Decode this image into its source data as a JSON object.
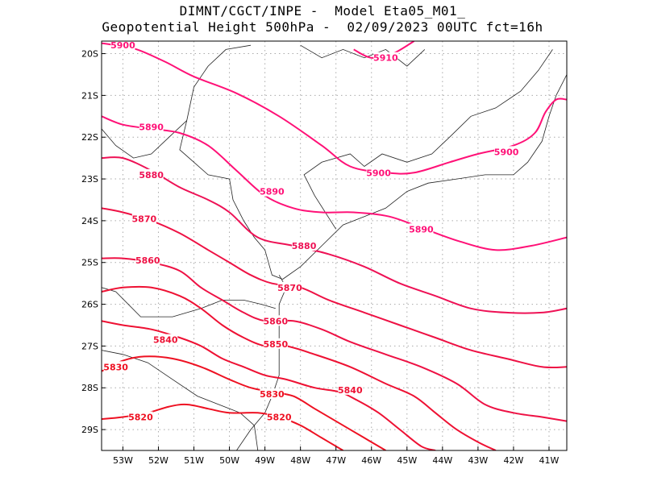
{
  "chart_data": {
    "type": "line",
    "title": "DIMNT/CGCT/INPE -  Model Eta05_M01_",
    "subtitle": "Geopotential Height 500hPa -  02/09/2023 00UTC fct=16h",
    "xlim": [
      -53.6,
      -40.5
    ],
    "ylim": [
      -29.5,
      -19.7
    ],
    "x_ticks": [
      {
        "v": -53,
        "label": "53W"
      },
      {
        "v": -52,
        "label": "52W"
      },
      {
        "v": -51,
        "label": "51W"
      },
      {
        "v": -50,
        "label": "50W"
      },
      {
        "v": -49,
        "label": "49W"
      },
      {
        "v": -48,
        "label": "48W"
      },
      {
        "v": -47,
        "label": "47W"
      },
      {
        "v": -46,
        "label": "46W"
      },
      {
        "v": -45,
        "label": "45W"
      },
      {
        "v": -44,
        "label": "44W"
      },
      {
        "v": -43,
        "label": "43W"
      },
      {
        "v": -42,
        "label": "42W"
      },
      {
        "v": -41,
        "label": "41W"
      }
    ],
    "y_ticks": [
      {
        "v": -20,
        "label": "20S"
      },
      {
        "v": -21,
        "label": "21S"
      },
      {
        "v": -22,
        "label": "22S"
      },
      {
        "v": -23,
        "label": "23S"
      },
      {
        "v": -24,
        "label": "24S"
      },
      {
        "v": -25,
        "label": "25S"
      },
      {
        "v": -26,
        "label": "26S"
      },
      {
        "v": -27,
        "label": "27S"
      },
      {
        "v": -28,
        "label": "28S"
      },
      {
        "v": -29,
        "label": "29S"
      }
    ],
    "grid": true,
    "series": [
      {
        "name": "5910",
        "color": "#ff1177",
        "points": [
          [
            -46.5,
            -19.9
          ],
          [
            -46.0,
            -20.1
          ],
          [
            -45.4,
            -20.0
          ],
          [
            -44.8,
            -19.7
          ]
        ],
        "label_at": [
          -45.6,
          -20.1
        ]
      },
      {
        "name": "5900",
        "color": "#ff1177",
        "points": [
          [
            -53.6,
            -19.75
          ],
          [
            -53.2,
            -19.8
          ],
          [
            -52.6,
            -19.9
          ],
          [
            -51.8,
            -20.2
          ],
          [
            -51.0,
            -20.55
          ],
          [
            -49.8,
            -20.95
          ],
          [
            -48.6,
            -21.5
          ],
          [
            -47.4,
            -22.2
          ],
          [
            -46.6,
            -22.7
          ],
          [
            -45.6,
            -22.85
          ],
          [
            -44.8,
            -22.85
          ],
          [
            -43.8,
            -22.6
          ],
          [
            -43.0,
            -22.4
          ],
          [
            -42.0,
            -22.2
          ],
          [
            -41.4,
            -21.9
          ],
          [
            -41.1,
            -21.4
          ],
          [
            -40.8,
            -21.1
          ],
          [
            -40.5,
            -21.1
          ]
        ],
        "label_at": [
          -42.2,
          -22.35
        ],
        "label2": "5900",
        "label2_at": [
          -45.8,
          -22.85
        ],
        "label3": "5900",
        "label3_at": [
          -53.0,
          -19.8
        ]
      },
      {
        "name": "5890",
        "color": "#ff1177",
        "points": [
          [
            -53.6,
            -21.5
          ],
          [
            -53.0,
            -21.7
          ],
          [
            -52.2,
            -21.8
          ],
          [
            -51.4,
            -21.9
          ],
          [
            -50.6,
            -22.2
          ],
          [
            -49.8,
            -22.8
          ],
          [
            -49.0,
            -23.4
          ],
          [
            -48.2,
            -23.7
          ],
          [
            -47.4,
            -23.8
          ],
          [
            -46.5,
            -23.8
          ],
          [
            -45.5,
            -23.9
          ],
          [
            -44.5,
            -24.2
          ],
          [
            -43.5,
            -24.5
          ],
          [
            -42.5,
            -24.7
          ],
          [
            -41.5,
            -24.6
          ],
          [
            -40.5,
            -24.4
          ]
        ],
        "label_at": [
          -52.2,
          -21.75
        ],
        "label2": "5890",
        "label2_at": [
          -48.8,
          -23.3
        ],
        "label3": "5890",
        "label3_at": [
          -44.6,
          -24.2
        ]
      },
      {
        "name": "5880",
        "color": "#ee1155",
        "points": [
          [
            -53.6,
            -22.5
          ],
          [
            -53.0,
            -22.5
          ],
          [
            -52.2,
            -22.8
          ],
          [
            -51.4,
            -23.2
          ],
          [
            -50.6,
            -23.5
          ],
          [
            -50.0,
            -23.8
          ],
          [
            -49.2,
            -24.4
          ],
          [
            -48.2,
            -24.6
          ],
          [
            -47.2,
            -24.8
          ],
          [
            -46.2,
            -25.1
          ],
          [
            -45.2,
            -25.5
          ],
          [
            -44.2,
            -25.8
          ],
          [
            -43.2,
            -26.1
          ],
          [
            -42.2,
            -26.2
          ],
          [
            -41.2,
            -26.2
          ],
          [
            -40.5,
            -26.1
          ]
        ],
        "label_at": [
          -52.2,
          -22.9
        ],
        "label2": "5880",
        "label2_at": [
          -47.9,
          -24.6
        ]
      },
      {
        "name": "5870",
        "color": "#ee1144",
        "points": [
          [
            -53.6,
            -23.7
          ],
          [
            -53.0,
            -23.8
          ],
          [
            -52.2,
            -24.0
          ],
          [
            -51.4,
            -24.3
          ],
          [
            -50.6,
            -24.7
          ],
          [
            -50.0,
            -25.0
          ],
          [
            -49.4,
            -25.3
          ],
          [
            -48.8,
            -25.5
          ],
          [
            -48.0,
            -25.6
          ],
          [
            -47.2,
            -25.9
          ],
          [
            -46.2,
            -26.2
          ],
          [
            -45.2,
            -26.5
          ],
          [
            -44.2,
            -26.8
          ],
          [
            -43.2,
            -27.1
          ],
          [
            -42.2,
            -27.3
          ],
          [
            -41.2,
            -27.5
          ],
          [
            -40.5,
            -27.5
          ]
        ],
        "label_at": [
          -52.4,
          -23.95
        ],
        "label2": "5870",
        "label2_at": [
          -48.3,
          -25.6
        ]
      },
      {
        "name": "5860",
        "color": "#ee1144",
        "points": [
          [
            -53.6,
            -24.9
          ],
          [
            -53.0,
            -24.9
          ],
          [
            -52.2,
            -25.0
          ],
          [
            -51.4,
            -25.2
          ],
          [
            -50.8,
            -25.6
          ],
          [
            -50.2,
            -25.9
          ],
          [
            -49.6,
            -26.2
          ],
          [
            -49.0,
            -26.4
          ],
          [
            -48.2,
            -26.4
          ],
          [
            -47.4,
            -26.6
          ],
          [
            -46.6,
            -26.9
          ],
          [
            -45.6,
            -27.2
          ],
          [
            -44.6,
            -27.5
          ],
          [
            -43.6,
            -27.9
          ],
          [
            -42.8,
            -28.4
          ],
          [
            -42.0,
            -28.6
          ],
          [
            -41.2,
            -28.7
          ],
          [
            -40.5,
            -28.8
          ]
        ],
        "label_at": [
          -52.3,
          -24.95
        ],
        "label2": "5860",
        "label2_at": [
          -48.7,
          -26.4
        ]
      },
      {
        "name": "5850",
        "color": "#ee1133",
        "points": [
          [
            -53.6,
            -25.7
          ],
          [
            -53.0,
            -25.6
          ],
          [
            -52.2,
            -25.6
          ],
          [
            -51.4,
            -25.8
          ],
          [
            -50.8,
            -26.1
          ],
          [
            -50.2,
            -26.5
          ],
          [
            -49.6,
            -26.8
          ],
          [
            -49.0,
            -27.0
          ],
          [
            -48.4,
            -27.0
          ],
          [
            -47.6,
            -27.2
          ],
          [
            -46.6,
            -27.5
          ],
          [
            -45.6,
            -27.9
          ],
          [
            -44.8,
            -28.2
          ],
          [
            -44.2,
            -28.6
          ],
          [
            -43.6,
            -29.0
          ],
          [
            -43.0,
            -29.3
          ],
          [
            -42.5,
            -29.5
          ]
        ],
        "label_at": [
          -48.7,
          -26.95
        ]
      },
      {
        "name": "5840",
        "color": "#ee1133",
        "points": [
          [
            -53.6,
            -26.4
          ],
          [
            -53.0,
            -26.5
          ],
          [
            -52.2,
            -26.6
          ],
          [
            -51.4,
            -26.8
          ],
          [
            -50.8,
            -27.0
          ],
          [
            -50.2,
            -27.3
          ],
          [
            -49.6,
            -27.5
          ],
          [
            -49.0,
            -27.7
          ],
          [
            -48.4,
            -27.8
          ],
          [
            -47.6,
            -28.0
          ],
          [
            -46.9,
            -28.1
          ],
          [
            -46.4,
            -28.3
          ],
          [
            -45.8,
            -28.6
          ],
          [
            -45.2,
            -29.0
          ],
          [
            -44.6,
            -29.4
          ],
          [
            -44.2,
            -29.5
          ]
        ],
        "label_at": [
          -51.8,
          -26.85
        ],
        "label2": "5840",
        "label2_at": [
          -46.6,
          -28.05
        ]
      },
      {
        "name": "5830",
        "color": "#ee1122",
        "points": [
          [
            -53.6,
            -27.6
          ],
          [
            -53.3,
            -27.5
          ],
          [
            -53.0,
            -27.35
          ],
          [
            -52.4,
            -27.25
          ],
          [
            -51.6,
            -27.3
          ],
          [
            -50.8,
            -27.5
          ],
          [
            -50.0,
            -27.8
          ],
          [
            -49.4,
            -28.0
          ],
          [
            -48.8,
            -28.1
          ],
          [
            -48.2,
            -28.2
          ],
          [
            -47.6,
            -28.5
          ],
          [
            -47.0,
            -28.8
          ],
          [
            -46.2,
            -29.2
          ],
          [
            -45.6,
            -29.5
          ]
        ],
        "label_at": [
          -53.2,
          -27.5
        ],
        "label2": "5830",
        "label2_at": [
          -48.8,
          -28.15
        ]
      },
      {
        "name": "5820",
        "color": "#ee1122",
        "points": [
          [
            -53.6,
            -28.75
          ],
          [
            -53.0,
            -28.7
          ],
          [
            -52.3,
            -28.6
          ],
          [
            -51.7,
            -28.45
          ],
          [
            -51.2,
            -28.4
          ],
          [
            -50.6,
            -28.5
          ],
          [
            -50.0,
            -28.6
          ],
          [
            -49.2,
            -28.6
          ],
          [
            -48.6,
            -28.7
          ],
          [
            -48.0,
            -28.9
          ],
          [
            -47.4,
            -29.2
          ],
          [
            -46.8,
            -29.5
          ]
        ],
        "label_at": [
          -52.5,
          -28.7
        ],
        "label2": "5820",
        "label2_at": [
          -48.6,
          -28.7
        ]
      }
    ],
    "coastline": [
      [
        [
          -53.6,
          -21.8
        ],
        [
          -53.2,
          -22.2
        ],
        [
          -52.7,
          -22.5
        ],
        [
          -52.2,
          -22.4
        ],
        [
          -51.7,
          -22.0
        ],
        [
          -51.2,
          -21.6
        ],
        [
          -51.0,
          -20.8
        ],
        [
          -50.6,
          -20.3
        ],
        [
          -50.1,
          -19.9
        ],
        [
          -49.4,
          -19.8
        ]
      ],
      [
        [
          -51.2,
          -21.6
        ],
        [
          -51.4,
          -22.3
        ],
        [
          -51.0,
          -22.6
        ],
        [
          -50.6,
          -22.9
        ],
        [
          -50.0,
          -23.0
        ],
        [
          -49.9,
          -23.5
        ],
        [
          -49.6,
          -24.0
        ],
        [
          -49.3,
          -24.4
        ],
        [
          -49.0,
          -24.7
        ],
        [
          -48.8,
          -25.3
        ],
        [
          -48.5,
          -25.4
        ]
      ],
      [
        [
          -53.6,
          -25.6
        ],
        [
          -53.2,
          -25.7
        ],
        [
          -52.5,
          -26.3
        ],
        [
          -51.6,
          -26.3
        ],
        [
          -50.8,
          -26.1
        ],
        [
          -50.2,
          -25.9
        ],
        [
          -49.6,
          -25.9
        ],
        [
          -49.1,
          -26.0
        ],
        [
          -48.7,
          -26.1
        ]
      ],
      [
        [
          -53.6,
          -27.1
        ],
        [
          -53.0,
          -27.2
        ],
        [
          -52.3,
          -27.4
        ],
        [
          -51.6,
          -27.8
        ],
        [
          -50.9,
          -28.2
        ],
        [
          -50.3,
          -28.4
        ],
        [
          -49.7,
          -28.6
        ],
        [
          -49.3,
          -28.9
        ],
        [
          -49.2,
          -29.5
        ]
      ],
      [
        [
          -48.6,
          -25.3
        ],
        [
          -48.4,
          -25.6
        ],
        [
          -48.6,
          -26.0
        ],
        [
          -48.6,
          -26.4
        ],
        [
          -48.6,
          -26.9
        ],
        [
          -48.6,
          -27.3
        ],
        [
          -48.6,
          -27.7
        ],
        [
          -48.8,
          -28.2
        ],
        [
          -49.0,
          -28.6
        ],
        [
          -49.4,
          -29.0
        ],
        [
          -49.8,
          -29.5
        ]
      ],
      [
        [
          -48.5,
          -25.4
        ],
        [
          -48.0,
          -25.1
        ],
        [
          -47.4,
          -24.6
        ],
        [
          -46.8,
          -24.1
        ],
        [
          -46.2,
          -23.9
        ],
        [
          -45.6,
          -23.7
        ],
        [
          -45.0,
          -23.3
        ],
        [
          -44.4,
          -23.1
        ],
        [
          -43.6,
          -23.0
        ],
        [
          -42.8,
          -22.9
        ],
        [
          -42.0,
          -22.9
        ],
        [
          -41.6,
          -22.6
        ],
        [
          -41.2,
          -22.1
        ],
        [
          -41.0,
          -21.5
        ],
        [
          -40.8,
          -21.0
        ],
        [
          -40.5,
          -20.5
        ]
      ],
      [
        [
          -47.0,
          -24.2
        ],
        [
          -47.6,
          -23.4
        ],
        [
          -47.9,
          -22.9
        ],
        [
          -47.4,
          -22.6
        ],
        [
          -46.6,
          -22.4
        ],
        [
          -46.2,
          -22.7
        ],
        [
          -45.7,
          -22.4
        ],
        [
          -45.0,
          -22.6
        ],
        [
          -44.3,
          -22.4
        ],
        [
          -43.8,
          -22.0
        ],
        [
          -43.2,
          -21.5
        ],
        [
          -42.5,
          -21.3
        ],
        [
          -41.8,
          -20.9
        ],
        [
          -41.3,
          -20.4
        ],
        [
          -40.9,
          -19.9
        ]
      ],
      [
        [
          -48.0,
          -19.8
        ],
        [
          -47.4,
          -20.1
        ],
        [
          -46.8,
          -19.9
        ],
        [
          -46.2,
          -20.1
        ],
        [
          -45.6,
          -19.9
        ],
        [
          -45.0,
          -20.3
        ],
        [
          -44.5,
          -19.9
        ]
      ]
    ]
  }
}
